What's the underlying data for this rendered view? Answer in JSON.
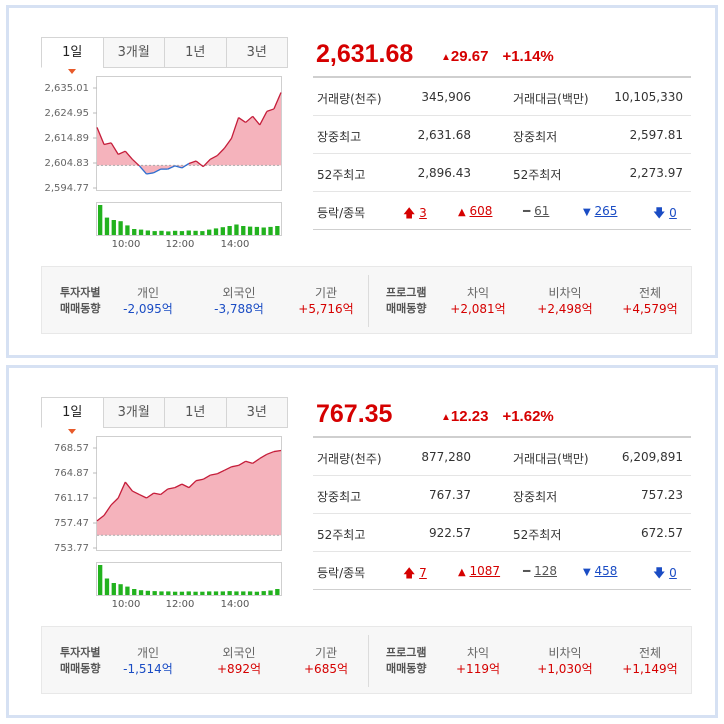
{
  "colors": {
    "up": "#d50000",
    "down": "#1a4cc4",
    "area": "#f29aa6",
    "bar": "#22b21e"
  },
  "panels": [
    {
      "tabs": [
        {
          "label": "1일"
        },
        {
          "label": "3개월"
        },
        {
          "label": "1년"
        },
        {
          "label": "3년"
        }
      ],
      "price": "2,631.68",
      "change": "29.67",
      "change_pct": "+1.14%",
      "stats": [
        {
          "l1": "거래량(천주)",
          "v1": "345,906",
          "l2": "거래대금(백만)",
          "v2": "10,105,330"
        },
        {
          "l1": "장중최고",
          "v1": "2,631.68",
          "l2": "장중최저",
          "v2": "2,597.81"
        },
        {
          "l1": "52주최고",
          "v1": "2,896.43",
          "l2": "52주최저",
          "v2": "2,273.97"
        }
      ],
      "updown": {
        "label": "등락/종목",
        "upper_limit": "3",
        "up": "608",
        "flat": "61",
        "down": "265",
        "lower_limit": "0"
      },
      "investor": {
        "title1": "투자자별",
        "title2": "매매동향",
        "cols": [
          {
            "h": "개인",
            "v": "-2,095억"
          },
          {
            "h": "외국인",
            "v": "-3,788억"
          },
          {
            "h": "기관",
            "v": "+5,716억"
          }
        ]
      },
      "program": {
        "title1": "프로그램",
        "title2": "매매동향",
        "cols": [
          {
            "h": "차익",
            "v": "+2,081억"
          },
          {
            "h": "비차익",
            "v": "+2,498억"
          },
          {
            "h": "전체",
            "v": "+4,579억"
          }
        ]
      },
      "chart_data": {
        "type": "area",
        "y_ticks": [
          "2,635.01",
          "2,624.95",
          "2,614.89",
          "2,604.83",
          "2,594.77"
        ],
        "ylim": [
          2592.0,
          2638.0
        ],
        "baseline": 2602.01,
        "x_ticks": [
          "10:00",
          "12:00",
          "14:00"
        ],
        "x_range": [
          "09:00",
          "15:30"
        ],
        "series": [
          {
            "x": [
              "09:00",
              "09:15",
              "09:30",
              "09:45",
              "10:00",
              "10:15",
              "10:30",
              "10:45",
              "11:00",
              "11:15",
              "11:30",
              "11:45",
              "12:00",
              "12:15",
              "12:30",
              "12:45",
              "13:00",
              "13:15",
              "13:30",
              "13:45",
              "14:00",
              "14:15",
              "14:30",
              "14:45",
              "15:00",
              "15:15",
              "15:30"
            ],
            "y": [
              2617.5,
              2610.5,
              2611.2,
              2606.5,
              2607.8,
              2604.5,
              2601.8,
              2598.5,
              2599.0,
              2600.5,
              2600.5,
              2601.8,
              2601.0,
              2602.8,
              2603.8,
              2601.5,
              2604.5,
              2606.0,
              2609.0,
              2613.0,
              2621.5,
              2619.5,
              2622.0,
              2618.5,
              2624.0,
              2625.0,
              2631.7
            ]
          }
        ],
        "volume": [
          100,
          58,
          50,
          46,
          32,
          20,
          18,
          15,
          13,
          14,
          12,
          14,
          13,
          15,
          14,
          13,
          18,
          22,
          26,
          30,
          35,
          30,
          28,
          27,
          25,
          27,
          30
        ]
      }
    },
    {
      "tabs": [
        {
          "label": "1일"
        },
        {
          "label": "3개월"
        },
        {
          "label": "1년"
        },
        {
          "label": "3년"
        }
      ],
      "price": "767.35",
      "change": "12.23",
      "change_pct": "+1.62%",
      "stats": [
        {
          "l1": "거래량(천주)",
          "v1": "877,280",
          "l2": "거래대금(백만)",
          "v2": "6,209,891"
        },
        {
          "l1": "장중최고",
          "v1": "767.37",
          "l2": "장중최저",
          "v2": "757.23"
        },
        {
          "l1": "52주최고",
          "v1": "922.57",
          "l2": "52주최저",
          "v2": "672.57"
        }
      ],
      "updown": {
        "label": "등락/종목",
        "upper_limit": "7",
        "up": "1087",
        "flat": "128",
        "down": "458",
        "lower_limit": "0"
      },
      "investor": {
        "title1": "투자자별",
        "title2": "매매동향",
        "cols": [
          {
            "h": "개인",
            "v": "-1,514억"
          },
          {
            "h": "외국인",
            "v": "+892억"
          },
          {
            "h": "기관",
            "v": "+685억"
          }
        ]
      },
      "program": {
        "title1": "프로그램",
        "title2": "매매동향",
        "cols": [
          {
            "h": "차익",
            "v": "+119억"
          },
          {
            "h": "비차익",
            "v": "+1,030억"
          },
          {
            "h": "전체",
            "v": "+1,149억"
          }
        ]
      },
      "chart_data": {
        "type": "area",
        "y_ticks": [
          "768.57",
          "764.87",
          "761.17",
          "757.47",
          "753.77"
        ],
        "ylim": [
          753.0,
          769.3
        ],
        "baseline": 755.12,
        "x_ticks": [
          "10:00",
          "12:00",
          "14:00"
        ],
        "x_range": [
          "09:00",
          "15:30"
        ],
        "series": [
          {
            "x": [
              "09:00",
              "09:15",
              "09:30",
              "09:45",
              "10:00",
              "10:15",
              "10:30",
              "10:45",
              "11:00",
              "11:15",
              "11:30",
              "11:45",
              "12:00",
              "12:15",
              "12:30",
              "12:45",
              "13:00",
              "13:15",
              "13:30",
              "13:45",
              "14:00",
              "14:15",
              "14:30",
              "14:45",
              "15:00",
              "15:15",
              "15:30"
            ],
            "y": [
              757.2,
              758.0,
              759.5,
              760.5,
              762.8,
              761.5,
              761.0,
              760.5,
              761.2,
              761.0,
              761.8,
              762.0,
              762.5,
              762.0,
              763.0,
              763.2,
              763.8,
              764.0,
              764.5,
              765.0,
              765.2,
              765.8,
              765.5,
              766.2,
              766.8,
              767.2,
              767.35
            ]
          }
        ],
        "volume": [
          100,
          55,
          40,
          36,
          28,
          20,
          16,
          14,
          13,
          12,
          12,
          11,
          11,
          12,
          11,
          11,
          12,
          12,
          12,
          13,
          12,
          12,
          12,
          11,
          13,
          15,
          20
        ]
      }
    }
  ]
}
